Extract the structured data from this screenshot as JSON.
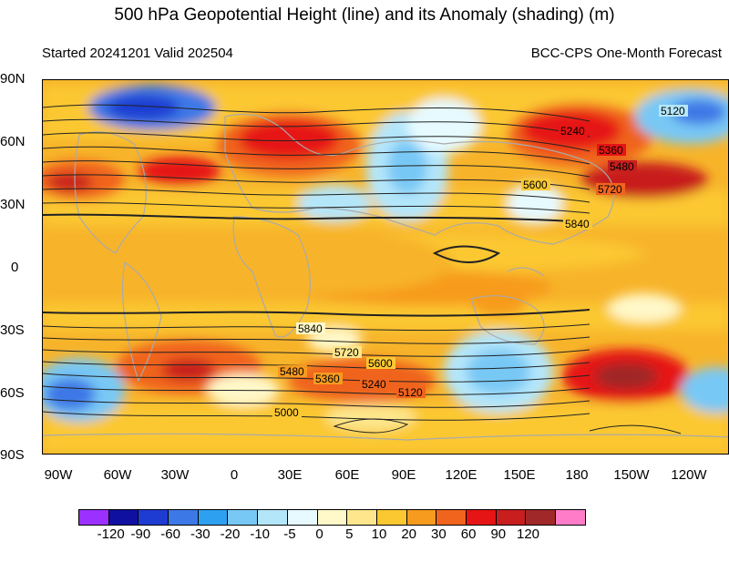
{
  "title": "500 hPa Geopotential Height (line) and its Anomaly (shading) (m)",
  "subtitle_left": "Started 20241201  Valid 202504",
  "subtitle_right": "BCC-CPS One-Month Forecast",
  "lat_labels": [
    "90N",
    "60N",
    "30N",
    "0",
    "30S",
    "60S",
    "90S"
  ],
  "lon_labels": [
    "90W",
    "60W",
    "30W",
    "0",
    "30E",
    "60E",
    "90E",
    "120E",
    "150E",
    "180",
    "150W",
    "120W"
  ],
  "contour_labels": [
    "5120",
    "5240",
    "5360",
    "5480",
    "5600",
    "5720",
    "5840",
    "5840",
    "5720",
    "5600",
    "5480",
    "5360",
    "5240",
    "5120",
    "5000"
  ],
  "colorbar": {
    "labels": [
      "-120",
      "-90",
      "-60",
      "-30",
      "-20",
      "-10",
      "-5",
      "0",
      "5",
      "10",
      "20",
      "30",
      "60",
      "90",
      "120"
    ],
    "colors": [
      "#9b30ff",
      "#1010a0",
      "#1e3cd2",
      "#3c78e6",
      "#2ea0f0",
      "#78c8f5",
      "#b4e6fa",
      "#e6faff",
      "#fff8c8",
      "#fde68c",
      "#fbc832",
      "#f79b1e",
      "#f0641e",
      "#e61414",
      "#c81e1e",
      "#a02828",
      "#ff7dc8"
    ]
  },
  "colors": {
    "background_anomaly": "#f7b42a",
    "contour": "#222222",
    "coastline": "#aaaaaa"
  }
}
